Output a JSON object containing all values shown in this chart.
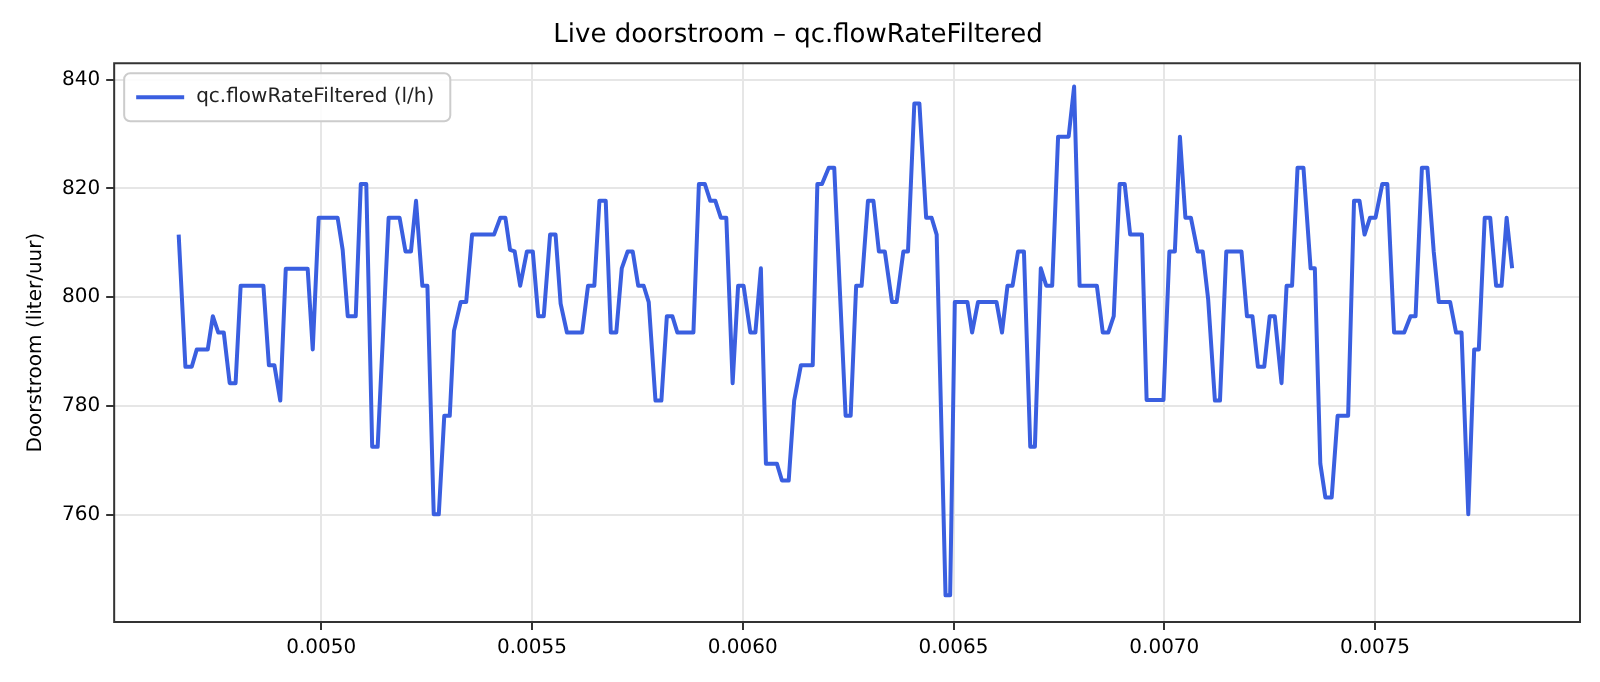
{
  "chart_data": {
    "type": "line",
    "title": "Live doorstroom – qc.flowRateFiltered",
    "ylabel": "Doorstroom (liter/uur)",
    "xlim": [
      0.004509,
      0.007986
    ],
    "ylim": [
      740.3,
      843
    ],
    "xticks": [
      {
        "value": 0.005,
        "label": "0.0050"
      },
      {
        "value": 0.0055,
        "label": "0.0055"
      },
      {
        "value": 0.006,
        "label": "0.0060"
      },
      {
        "value": 0.0065,
        "label": "0.0065"
      },
      {
        "value": 0.007,
        "label": "0.0070"
      },
      {
        "value": 0.0075,
        "label": "0.0075"
      }
    ],
    "yticks": [
      760,
      780,
      800,
      820,
      840
    ],
    "grid": true,
    "legend": "top left",
    "marker": "none",
    "line_style": "solid",
    "series": [
      {
        "name": "qc.flowRateFiltered (l/h)",
        "color": "#3a5fe0",
        "x": [
          0.004662,
          0.004678,
          0.004693,
          0.004705,
          0.004731,
          0.004743,
          0.004756,
          0.004769,
          0.004783,
          0.004797,
          0.004809,
          0.004863,
          0.004876,
          0.004889,
          0.004903,
          0.004916,
          0.004968,
          0.00498,
          0.004994,
          0.005039,
          0.005051,
          0.005063,
          0.005082,
          0.005094,
          0.005107,
          0.005121,
          0.005134,
          0.00516,
          0.005186,
          0.0052,
          0.005213,
          0.005225,
          0.00524,
          0.005252,
          0.005267,
          0.005279,
          0.005292,
          0.005305,
          0.005315,
          0.005331,
          0.005344,
          0.005358,
          0.00541,
          0.005425,
          0.005437,
          0.005448,
          0.005459,
          0.005472,
          0.005488,
          0.005502,
          0.005515,
          0.005528,
          0.005543,
          0.005556,
          0.005568,
          0.005583,
          0.005619,
          0.005633,
          0.005648,
          0.00566,
          0.005675,
          0.005687,
          0.0057,
          0.005713,
          0.005727,
          0.005739,
          0.005752,
          0.005765,
          0.005777,
          0.005793,
          0.005807,
          0.00582,
          0.005833,
          0.005845,
          0.005883,
          0.005896,
          0.00591,
          0.005923,
          0.005935,
          0.005948,
          0.005961,
          0.005976,
          0.005989,
          0.006002,
          0.006018,
          0.00603,
          0.006043,
          0.006055,
          0.006081,
          0.006093,
          0.006109,
          0.006122,
          0.006138,
          0.006166,
          0.006177,
          0.006188,
          0.006204,
          0.006217,
          0.006244,
          0.006256,
          0.006269,
          0.006282,
          0.006297,
          0.00631,
          0.006323,
          0.006337,
          0.006354,
          0.006365,
          0.006381,
          0.006392,
          0.006407,
          0.006419,
          0.006435,
          0.006448,
          0.00646,
          0.006481,
          0.006492,
          0.006503,
          0.006533,
          0.006544,
          0.006558,
          0.006602,
          0.006615,
          0.006628,
          0.00664,
          0.006653,
          0.006667,
          0.006682,
          0.006693,
          0.006707,
          0.00672,
          0.006734,
          0.006748,
          0.006773,
          0.006786,
          0.006799,
          0.00684,
          0.006854,
          0.006867,
          0.00688,
          0.006894,
          0.006906,
          0.006919,
          0.006947,
          0.006958,
          0.006998,
          0.007012,
          0.007025,
          0.007037,
          0.00705,
          0.007063,
          0.007079,
          0.007091,
          0.007104,
          0.00712,
          0.007132,
          0.007147,
          0.007183,
          0.007196,
          0.007209,
          0.007222,
          0.007237,
          0.00725,
          0.007262,
          0.007278,
          0.00729,
          0.007303,
          0.007316,
          0.00733,
          0.007347,
          0.007357,
          0.00737,
          0.007382,
          0.007397,
          0.007411,
          0.007436,
          0.00745,
          0.007463,
          0.007475,
          0.007488,
          0.007501,
          0.007517,
          0.007529,
          0.007545,
          0.007569,
          0.007584,
          0.007596,
          0.007611,
          0.007624,
          0.007639,
          0.007651,
          0.007678,
          0.007692,
          0.007705,
          0.007721,
          0.007735,
          0.007746,
          0.00776,
          0.007773,
          0.007787,
          0.0078,
          0.007812,
          0.007825
        ],
        "values": [
          811.5,
          787.2,
          787.2,
          790.4,
          790.4,
          796.5,
          793.5,
          793.5,
          784.2,
          784.2,
          802.1,
          802.1,
          787.5,
          787.5,
          781,
          805.2,
          805.2,
          790.4,
          814.6,
          814.6,
          808.7,
          796.5,
          796.5,
          820.8,
          820.8,
          772.5,
          772.5,
          814.6,
          814.6,
          808.4,
          808.4,
          817.7,
          802.1,
          802.1,
          760.1,
          760.1,
          778.2,
          778.2,
          793.8,
          799.1,
          799.1,
          811.5,
          811.5,
          814.6,
          814.6,
          808.7,
          808.4,
          802.1,
          808.4,
          808.4,
          796.5,
          796.5,
          811.5,
          811.5,
          798.8,
          793.5,
          793.5,
          802.1,
          802.1,
          817.7,
          817.7,
          793.5,
          793.5,
          805.3,
          808.4,
          808.4,
          802.1,
          802.1,
          799.1,
          781,
          781,
          796.5,
          796.5,
          793.5,
          793.5,
          820.8,
          820.8,
          817.7,
          817.7,
          814.6,
          814.6,
          784.2,
          802.1,
          802.1,
          793.5,
          793.5,
          805.3,
          769.4,
          769.4,
          766.3,
          766.3,
          781,
          787.5,
          787.5,
          820.8,
          820.8,
          823.8,
          823.8,
          778.2,
          778.2,
          802.1,
          802.1,
          817.7,
          817.7,
          808.4,
          808.4,
          799.1,
          799.1,
          808.4,
          808.4,
          835.6,
          835.6,
          814.6,
          814.6,
          811.5,
          745.2,
          745.2,
          799.1,
          799.1,
          793.5,
          799.1,
          799.1,
          793.5,
          802.1,
          802.1,
          808.4,
          808.4,
          772.5,
          772.5,
          805.3,
          802.1,
          802.1,
          829.5,
          829.5,
          838.7,
          802.1,
          802.1,
          793.5,
          793.5,
          796.5,
          820.8,
          820.8,
          811.5,
          811.5,
          781.1,
          781.1,
          808.4,
          808.4,
          829.5,
          814.6,
          814.6,
          808.4,
          808.4,
          799.6,
          781,
          781,
          808.4,
          808.4,
          796.5,
          796.5,
          787.2,
          787.2,
          796.5,
          796.5,
          784.2,
          802.1,
          802.1,
          823.8,
          823.8,
          805.3,
          805.3,
          769.4,
          763.2,
          763.2,
          778.2,
          778.2,
          817.7,
          817.7,
          811.5,
          814.6,
          814.6,
          820.8,
          820.8,
          793.5,
          793.5,
          796.5,
          796.5,
          823.8,
          823.8,
          808.4,
          799.1,
          799.1,
          793.5,
          793.5,
          760.1,
          790.4,
          790.4,
          814.6,
          814.6,
          802.1,
          802.1,
          814.6,
          805.3
        ]
      }
    ]
  }
}
